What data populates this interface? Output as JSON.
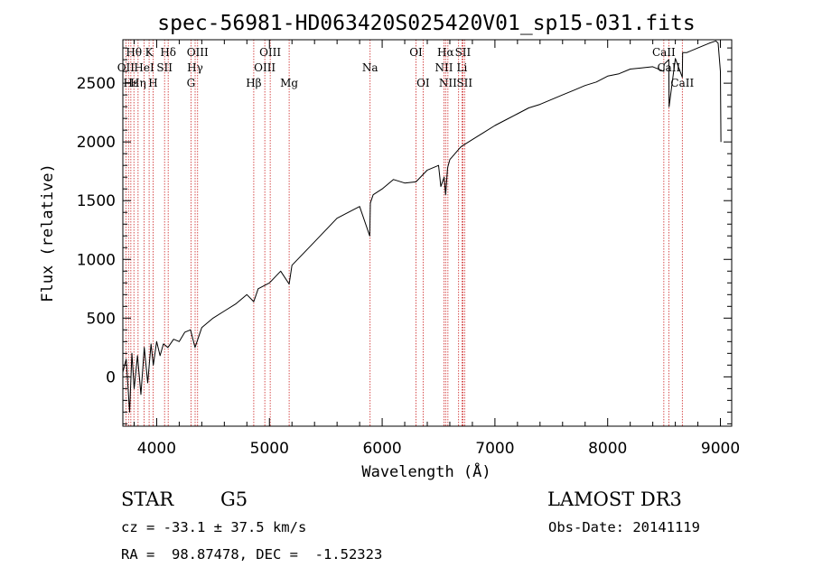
{
  "chart_data": {
    "type": "line",
    "title": "spec-56981-HD063420S025420V01_sp15-031.fits",
    "xlabel": "Wavelength (Å)",
    "ylabel": "Flux (relative)",
    "xlim": [
      3700,
      9100
    ],
    "ylim": [
      -420,
      2870
    ],
    "grid": false,
    "x_ticks": [
      4000,
      5000,
      6000,
      7000,
      8000,
      9000
    ],
    "x_tick_labels": [
      "4000",
      "5000",
      "6000",
      "7000",
      "8000",
      "9000"
    ],
    "y_ticks": [
      0,
      500,
      1000,
      1500,
      2000,
      2500
    ],
    "y_tick_labels": [
      "0",
      "500",
      "1000",
      "1500",
      "2000",
      "2500"
    ],
    "x_minor_step": 200,
    "y_minor_step": 100,
    "series": [
      {
        "name": "spectrum",
        "color": "#000000",
        "x": [
          3700,
          3730,
          3760,
          3780,
          3800,
          3830,
          3860,
          3890,
          3920,
          3950,
          3970,
          4000,
          4030,
          4060,
          4100,
          4150,
          4200,
          4250,
          4300,
          4340,
          4400,
          4500,
          4600,
          4700,
          4800,
          4861,
          4900,
          5000,
          5100,
          5175,
          5200,
          5300,
          5400,
          5500,
          5600,
          5700,
          5800,
          5890,
          5895,
          5920,
          6000,
          6100,
          6200,
          6300,
          6400,
          6500,
          6520,
          6550,
          6563,
          6580,
          6600,
          6700,
          6800,
          6900,
          7000,
          7100,
          7200,
          7300,
          7400,
          7500,
          7600,
          7700,
          7800,
          7900,
          8000,
          8100,
          8200,
          8300,
          8400,
          8498,
          8500,
          8542,
          8545,
          8600,
          8662,
          8665,
          8700,
          8800,
          8900,
          8960,
          8980,
          9000,
          9005
        ],
        "y": [
          40,
          150,
          -300,
          200,
          -100,
          180,
          -150,
          250,
          -50,
          280,
          100,
          300,
          180,
          280,
          250,
          320,
          300,
          380,
          400,
          250,
          420,
          500,
          560,
          620,
          700,
          640,
          750,
          800,
          900,
          790,
          950,
          1050,
          1150,
          1250,
          1350,
          1400,
          1450,
          1200,
          1480,
          1550,
          1600,
          1680,
          1650,
          1660,
          1760,
          1800,
          1620,
          1700,
          1550,
          1780,
          1850,
          1960,
          2020,
          2080,
          2140,
          2190,
          2240,
          2290,
          2320,
          2360,
          2400,
          2440,
          2480,
          2510,
          2560,
          2580,
          2620,
          2630,
          2640,
          2600,
          2660,
          2700,
          2300,
          2710,
          2550,
          2760,
          2760,
          2800,
          2840,
          2860,
          2840,
          2600,
          2000
        ]
      }
    ],
    "line_markers": {
      "color": "#cc2222",
      "wavelengths": [
        3727,
        3750,
        3771,
        3798,
        3835,
        3889,
        3933,
        3968,
        4070,
        4102,
        4304,
        4341,
        4363,
        4861,
        4959,
        5007,
        5175,
        5893,
        6300,
        6363,
        6548,
        6563,
        6583,
        6678,
        6708,
        6716,
        6731,
        8498,
        8542,
        8662
      ]
    },
    "line_labels": [
      {
        "text": "Hθ",
        "x": 3798,
        "row": 1
      },
      {
        "text": "K",
        "x": 3933,
        "row": 1
      },
      {
        "text": "Hδ",
        "x": 4102,
        "row": 1
      },
      {
        "text": "OIII",
        "x": 4363,
        "row": 1
      },
      {
        "text": "OIII",
        "x": 5007,
        "row": 1
      },
      {
        "text": "OI",
        "x": 6300,
        "row": 1
      },
      {
        "text": "Hα",
        "x": 6563,
        "row": 1
      },
      {
        "text": "SII",
        "x": 6716,
        "row": 1
      },
      {
        "text": "CaII",
        "x": 8498,
        "row": 1
      },
      {
        "text": "OII",
        "x": 3727,
        "row": 2
      },
      {
        "text": "HeI",
        "x": 3889,
        "row": 2
      },
      {
        "text": "SII",
        "x": 4070,
        "row": 2
      },
      {
        "text": "Hγ",
        "x": 4341,
        "row": 2
      },
      {
        "text": "OIII",
        "x": 4959,
        "row": 2
      },
      {
        "text": "Na",
        "x": 5893,
        "row": 2
      },
      {
        "text": "NII",
        "x": 6548,
        "row": 2
      },
      {
        "text": "Li",
        "x": 6708,
        "row": 2
      },
      {
        "text": "CaII",
        "x": 8542,
        "row": 2
      },
      {
        "text": "Hε",
        "x": 3771,
        "row": 3
      },
      {
        "text": "Hη",
        "x": 3835,
        "row": 3
      },
      {
        "text": "H",
        "x": 3968,
        "row": 3
      },
      {
        "text": "G",
        "x": 4304,
        "row": 3
      },
      {
        "text": "Hβ",
        "x": 4861,
        "row": 3
      },
      {
        "text": "Mg",
        "x": 5175,
        "row": 3
      },
      {
        "text": "OI",
        "x": 6363,
        "row": 3
      },
      {
        "text": "NII",
        "x": 6583,
        "row": 3
      },
      {
        "text": "SII",
        "x": 6731,
        "row": 3
      },
      {
        "text": "CaII",
        "x": 8662,
        "row": 3
      }
    ]
  },
  "info": {
    "object_class": "STAR",
    "subclass": "G5",
    "survey": "LAMOST DR3",
    "redshift_line": "cz = -33.1 ± 37.5 km/s",
    "obs_date_line": "Obs-Date: 20141119",
    "coords_line": "RA =  98.87478, DEC =  -1.52323"
  }
}
